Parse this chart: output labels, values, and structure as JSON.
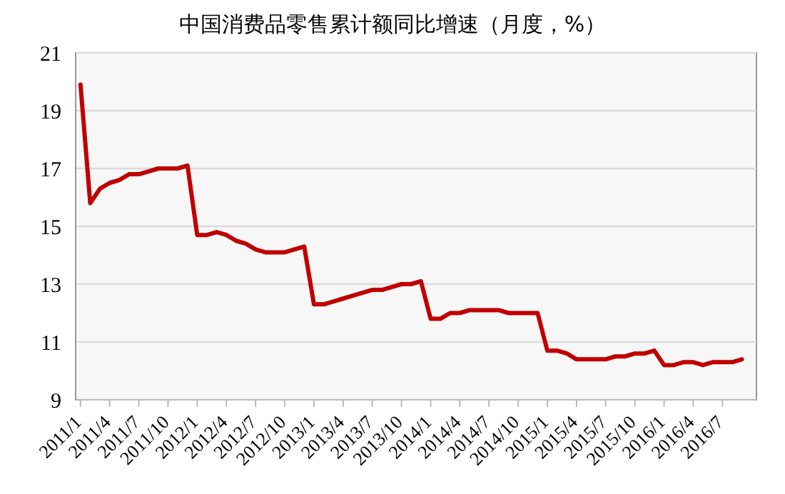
{
  "chart_data": {
    "type": "line",
    "title": "中国消费品零售累计额同比增速（月度，%）",
    "categories": [
      "2011/1",
      null,
      null,
      "2011/4",
      null,
      null,
      "2011/7",
      null,
      null,
      "2011/10",
      null,
      null,
      "2012/1",
      null,
      null,
      "2012/4",
      null,
      null,
      "2012/7",
      null,
      null,
      "2012/10",
      null,
      null,
      "2013/1",
      null,
      null,
      "2013/4",
      null,
      null,
      "2013/7",
      null,
      null,
      "2013/10",
      null,
      null,
      "2014/1",
      null,
      null,
      "2014/4",
      null,
      null,
      "2014/7",
      null,
      null,
      "2014/10",
      null,
      null,
      "2015/1",
      null,
      null,
      "2015/4",
      null,
      null,
      "2015/7",
      null,
      null,
      "2015/10",
      null,
      null,
      "2016/1",
      null,
      null,
      "2016/4",
      null,
      null,
      "2016/7",
      null,
      null
    ],
    "series": [
      {
        "color": "#c00000",
        "values": [
          19.9,
          15.8,
          16.3,
          16.5,
          16.6,
          16.8,
          16.8,
          16.9,
          17.0,
          17.0,
          17.0,
          17.1,
          14.7,
          14.7,
          14.8,
          14.7,
          14.5,
          14.4,
          14.2,
          14.1,
          14.1,
          14.1,
          14.2,
          14.3,
          12.3,
          12.3,
          12.4,
          12.5,
          12.6,
          12.7,
          12.8,
          12.8,
          12.9,
          13.0,
          13.0,
          13.1,
          11.8,
          11.8,
          12.0,
          12.0,
          12.1,
          12.1,
          12.1,
          12.1,
          12.0,
          12.0,
          12.0,
          12.0,
          10.7,
          10.7,
          10.6,
          10.4,
          10.4,
          10.4,
          10.4,
          10.5,
          10.5,
          10.6,
          10.6,
          10.7,
          10.2,
          10.2,
          10.3,
          10.3,
          10.2,
          10.3,
          10.3,
          10.3,
          10.4
        ]
      }
    ],
    "ylim": [
      9,
      21
    ],
    "yticks": [
      9,
      11,
      13,
      15,
      17,
      19,
      21
    ],
    "grid": "y",
    "marker": "none",
    "line_style": "solid"
  }
}
